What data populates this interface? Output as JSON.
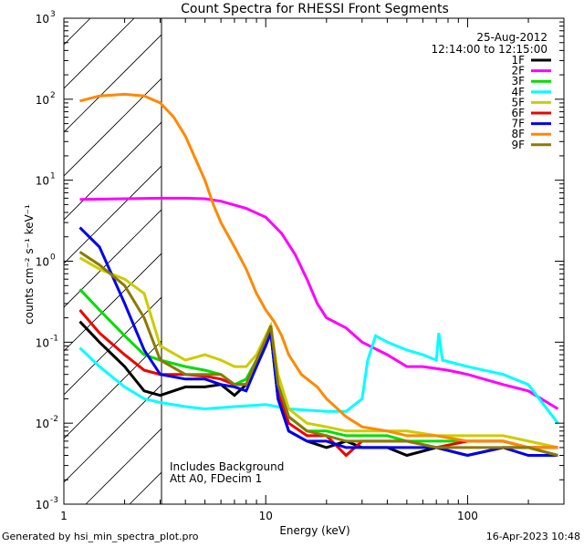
{
  "footer": {
    "generated_by": "Generated by hsi_min_spectra_plot.pro",
    "timestamp": "16-Apr-2023 10:48"
  },
  "chart_data": {
    "type": "line",
    "title": "Count Spectra for RHESSI Front Segments",
    "xlabel": "Energy (keV)",
    "ylabel": "counts cm⁻² s⁻¹ keV⁻¹",
    "xscale": "log",
    "yscale": "log",
    "xlim": [
      1,
      300
    ],
    "ylim": [
      0.001,
      1000
    ],
    "x_ticks": [
      1,
      10,
      100
    ],
    "x_tick_labels": [
      "1",
      "10",
      "100"
    ],
    "y_ticks": [
      0.001,
      0.01,
      0.1,
      1,
      10,
      100,
      1000
    ],
    "y_tick_labels": [
      {
        "base": "10",
        "exp": "-3"
      },
      {
        "base": "10",
        "exp": "-2"
      },
      {
        "base": "10",
        "exp": "-1"
      },
      {
        "base": "10",
        "exp": "0"
      },
      {
        "base": "10",
        "exp": "1"
      },
      {
        "base": "10",
        "exp": "2"
      },
      {
        "base": "10",
        "exp": "3"
      }
    ],
    "hatched_region_keV": [
      1,
      3
    ],
    "legend_placement": "top-right",
    "date": "25-Aug-2012",
    "time_range": "12:14:00 to 12:15:00",
    "annotations": [
      "Includes Background",
      "Att A0, FDecim 1"
    ],
    "series": [
      {
        "name": "1F",
        "color": "#000000",
        "points": [
          [
            1.2,
            0.18
          ],
          [
            1.5,
            0.1
          ],
          [
            2,
            0.05
          ],
          [
            2.5,
            0.025
          ],
          [
            3,
            0.022
          ],
          [
            4,
            0.028
          ],
          [
            5,
            0.028
          ],
          [
            6,
            0.03
          ],
          [
            7,
            0.022
          ],
          [
            8,
            0.03
          ],
          [
            9,
            0.05
          ],
          [
            10,
            0.1
          ],
          [
            10.6,
            0.13
          ],
          [
            11.5,
            0.02
          ],
          [
            13,
            0.008
          ],
          [
            16,
            0.006
          ],
          [
            20,
            0.005
          ],
          [
            25,
            0.006
          ],
          [
            30,
            0.005
          ],
          [
            40,
            0.005
          ],
          [
            50,
            0.004
          ],
          [
            70,
            0.005
          ],
          [
            100,
            0.004
          ],
          [
            150,
            0.005
          ],
          [
            200,
            0.005
          ],
          [
            280,
            0.005
          ]
        ]
      },
      {
        "name": "2F",
        "color": "#ff00ff",
        "points": [
          [
            1.2,
            5.8
          ],
          [
            2,
            5.9
          ],
          [
            3,
            6
          ],
          [
            4,
            6
          ],
          [
            5,
            5.9
          ],
          [
            6,
            5.5
          ],
          [
            8,
            4.5
          ],
          [
            10,
            3.5
          ],
          [
            12,
            2.2
          ],
          [
            14,
            1.2
          ],
          [
            16,
            0.6
          ],
          [
            18,
            0.3
          ],
          [
            20,
            0.2
          ],
          [
            25,
            0.15
          ],
          [
            30,
            0.1
          ],
          [
            40,
            0.07
          ],
          [
            50,
            0.05
          ],
          [
            60,
            0.05
          ],
          [
            80,
            0.045
          ],
          [
            100,
            0.04
          ],
          [
            150,
            0.03
          ],
          [
            200,
            0.025
          ],
          [
            280,
            0.015
          ]
        ]
      },
      {
        "name": "3F",
        "color": "#00dd00",
        "points": [
          [
            1.2,
            0.45
          ],
          [
            1.5,
            0.25
          ],
          [
            2,
            0.12
          ],
          [
            2.5,
            0.07
          ],
          [
            3,
            0.06
          ],
          [
            4,
            0.05
          ],
          [
            5,
            0.045
          ],
          [
            6,
            0.04
          ],
          [
            7,
            0.03
          ],
          [
            8,
            0.035
          ],
          [
            9,
            0.06
          ],
          [
            10,
            0.1
          ],
          [
            10.6,
            0.14
          ],
          [
            11.5,
            0.03
          ],
          [
            13,
            0.012
          ],
          [
            16,
            0.008
          ],
          [
            20,
            0.008
          ],
          [
            25,
            0.007
          ],
          [
            30,
            0.007
          ],
          [
            40,
            0.007
          ],
          [
            50,
            0.006
          ],
          [
            70,
            0.006
          ],
          [
            100,
            0.006
          ],
          [
            150,
            0.006
          ],
          [
            200,
            0.005
          ],
          [
            280,
            0.004
          ]
        ]
      },
      {
        "name": "4F",
        "color": "#00ffff",
        "points": [
          [
            1.2,
            0.085
          ],
          [
            1.5,
            0.05
          ],
          [
            2,
            0.028
          ],
          [
            2.5,
            0.02
          ],
          [
            3,
            0.018
          ],
          [
            4,
            0.016
          ],
          [
            5,
            0.015
          ],
          [
            7,
            0.016
          ],
          [
            10,
            0.017
          ],
          [
            13,
            0.015
          ],
          [
            20,
            0.014
          ],
          [
            25,
            0.014
          ],
          [
            30,
            0.02
          ],
          [
            32,
            0.06
          ],
          [
            35,
            0.12
          ],
          [
            40,
            0.1
          ],
          [
            50,
            0.08
          ],
          [
            60,
            0.07
          ],
          [
            70,
            0.06
          ],
          [
            72,
            0.13
          ],
          [
            75,
            0.06
          ],
          [
            100,
            0.05
          ],
          [
            150,
            0.04
          ],
          [
            200,
            0.03
          ],
          [
            280,
            0.01
          ]
        ]
      },
      {
        "name": "5F",
        "color": "#cccc00",
        "points": [
          [
            1.2,
            1.1
          ],
          [
            1.5,
            0.8
          ],
          [
            2,
            0.6
          ],
          [
            2.5,
            0.4
          ],
          [
            3,
            0.09
          ],
          [
            4,
            0.06
          ],
          [
            5,
            0.07
          ],
          [
            6,
            0.06
          ],
          [
            7,
            0.05
          ],
          [
            8,
            0.05
          ],
          [
            9,
            0.07
          ],
          [
            10,
            0.12
          ],
          [
            10.6,
            0.16
          ],
          [
            11.5,
            0.04
          ],
          [
            13,
            0.015
          ],
          [
            16,
            0.01
          ],
          [
            20,
            0.009
          ],
          [
            25,
            0.008
          ],
          [
            30,
            0.008
          ],
          [
            40,
            0.008
          ],
          [
            50,
            0.008
          ],
          [
            70,
            0.007
          ],
          [
            100,
            0.007
          ],
          [
            150,
            0.007
          ],
          [
            200,
            0.006
          ],
          [
            280,
            0.005
          ]
        ]
      },
      {
        "name": "6F",
        "color": "#ee0000",
        "points": [
          [
            1.2,
            0.25
          ],
          [
            1.5,
            0.13
          ],
          [
            2,
            0.07
          ],
          [
            2.5,
            0.045
          ],
          [
            3,
            0.04
          ],
          [
            4,
            0.04
          ],
          [
            5,
            0.038
          ],
          [
            6,
            0.035
          ],
          [
            7,
            0.03
          ],
          [
            8,
            0.03
          ],
          [
            9,
            0.06
          ],
          [
            10,
            0.1
          ],
          [
            10.6,
            0.14
          ],
          [
            11.5,
            0.025
          ],
          [
            13,
            0.01
          ],
          [
            16,
            0.007
          ],
          [
            20,
            0.007
          ],
          [
            25,
            0.004
          ],
          [
            30,
            0.006
          ],
          [
            40,
            0.006
          ],
          [
            50,
            0.006
          ],
          [
            70,
            0.005
          ],
          [
            100,
            0.006
          ],
          [
            150,
            0.006
          ],
          [
            200,
            0.005
          ],
          [
            280,
            0.005
          ]
        ]
      },
      {
        "name": "7F",
        "color": "#0000ee",
        "points": [
          [
            1.2,
            2.6
          ],
          [
            1.5,
            1.5
          ],
          [
            2,
            0.3
          ],
          [
            2.5,
            0.08
          ],
          [
            3,
            0.04
          ],
          [
            4,
            0.035
          ],
          [
            5,
            0.035
          ],
          [
            6,
            0.03
          ],
          [
            7,
            0.028
          ],
          [
            8,
            0.025
          ],
          [
            9,
            0.05
          ],
          [
            10,
            0.09
          ],
          [
            10.6,
            0.13
          ],
          [
            11.5,
            0.02
          ],
          [
            13,
            0.008
          ],
          [
            16,
            0.006
          ],
          [
            20,
            0.006
          ],
          [
            25,
            0.005
          ],
          [
            30,
            0.005
          ],
          [
            40,
            0.005
          ],
          [
            50,
            0.005
          ],
          [
            70,
            0.005
          ],
          [
            100,
            0.004
          ],
          [
            150,
            0.005
          ],
          [
            200,
            0.004
          ],
          [
            280,
            0.004
          ]
        ]
      },
      {
        "name": "8F",
        "color": "#ff8800",
        "points": [
          [
            1.2,
            95
          ],
          [
            1.5,
            110
          ],
          [
            2,
            115
          ],
          [
            2.5,
            110
          ],
          [
            3,
            90
          ],
          [
            3.5,
            60
          ],
          [
            4,
            35
          ],
          [
            4.5,
            18
          ],
          [
            5,
            10
          ],
          [
            5.5,
            5
          ],
          [
            6,
            3
          ],
          [
            7,
            1.5
          ],
          [
            8,
            0.8
          ],
          [
            9,
            0.4
          ],
          [
            10,
            0.25
          ],
          [
            11,
            0.18
          ],
          [
            12,
            0.12
          ],
          [
            13,
            0.07
          ],
          [
            15,
            0.04
          ],
          [
            18,
            0.028
          ],
          [
            20,
            0.02
          ],
          [
            25,
            0.012
          ],
          [
            30,
            0.009
          ],
          [
            40,
            0.008
          ],
          [
            50,
            0.007
          ],
          [
            70,
            0.007
          ],
          [
            100,
            0.006
          ],
          [
            150,
            0.006
          ],
          [
            200,
            0.005
          ],
          [
            280,
            0.005
          ]
        ]
      },
      {
        "name": "9F",
        "color": "#8a7a00",
        "points": [
          [
            1.2,
            1.3
          ],
          [
            1.5,
            0.9
          ],
          [
            2,
            0.5
          ],
          [
            2.5,
            0.2
          ],
          [
            3,
            0.06
          ],
          [
            4,
            0.04
          ],
          [
            5,
            0.04
          ],
          [
            6,
            0.04
          ],
          [
            7,
            0.03
          ],
          [
            8,
            0.03
          ],
          [
            9,
            0.06
          ],
          [
            10,
            0.11
          ],
          [
            10.6,
            0.16
          ],
          [
            11.5,
            0.03
          ],
          [
            13,
            0.012
          ],
          [
            16,
            0.008
          ],
          [
            20,
            0.007
          ],
          [
            25,
            0.006
          ],
          [
            30,
            0.006
          ],
          [
            40,
            0.006
          ],
          [
            50,
            0.006
          ],
          [
            70,
            0.005
          ],
          [
            100,
            0.005
          ],
          [
            150,
            0.005
          ],
          [
            200,
            0.005
          ],
          [
            280,
            0.004
          ]
        ]
      }
    ]
  }
}
